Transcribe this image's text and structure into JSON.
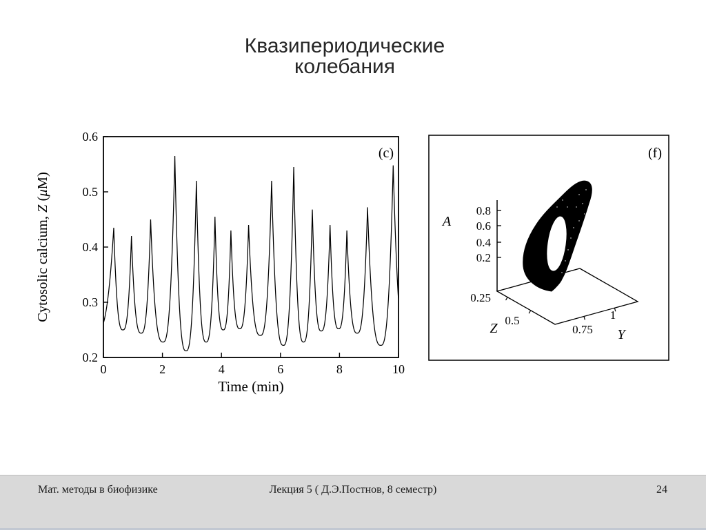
{
  "title": {
    "line1": "Квазипериодические",
    "line2": "колебания"
  },
  "footer": {
    "left": "Мат. методы в биофизике",
    "center": "Лекция 5 ( Д.Э.Постнов, 8 семестр)",
    "page": "24"
  },
  "colors": {
    "ink": "#000000",
    "footer_bg": "#d9d9d9",
    "footer_top_line": "#bdbdbd",
    "footer_bottom_edge": "#c2c8d2"
  },
  "chart_data": [
    {
      "id": "c",
      "type": "line",
      "panel_label": "(c)",
      "title": "",
      "xlabel": "Time (min)",
      "ylabel": "Cytosolic calcium, Z (μM)",
      "xlim": [
        0,
        10
      ],
      "ylim": [
        0.2,
        0.6
      ],
      "xticks": [
        0,
        2,
        4,
        6,
        8,
        10
      ],
      "yticks": [
        0.2,
        0.3,
        0.4,
        0.5,
        0.6
      ],
      "grid": false,
      "description": "Quasiperiodic calcium spike train: sharp spikes of slowly modulated amplitude over rounded valleys",
      "peaks_t_z": [
        [
          0.35,
          0.435
        ],
        [
          0.95,
          0.42
        ],
        [
          1.6,
          0.45
        ],
        [
          2.42,
          0.565
        ],
        [
          3.15,
          0.52
        ],
        [
          3.78,
          0.455
        ],
        [
          4.32,
          0.43
        ],
        [
          4.92,
          0.44
        ],
        [
          5.7,
          0.52
        ],
        [
          6.45,
          0.545
        ],
        [
          7.08,
          0.468
        ],
        [
          7.68,
          0.44
        ],
        [
          8.25,
          0.43
        ],
        [
          8.95,
          0.472
        ],
        [
          9.82,
          0.548
        ]
      ],
      "valleys_t_z": [
        [
          -0.25,
          0.246
        ],
        [
          0.66,
          0.25
        ],
        [
          1.28,
          0.244
        ],
        [
          2.02,
          0.228
        ],
        [
          2.8,
          0.212
        ],
        [
          3.48,
          0.228
        ],
        [
          4.06,
          0.25
        ],
        [
          4.62,
          0.252
        ],
        [
          5.32,
          0.24
        ],
        [
          6.1,
          0.222
        ],
        [
          6.78,
          0.228
        ],
        [
          7.38,
          0.248
        ],
        [
          7.97,
          0.252
        ],
        [
          8.6,
          0.244
        ],
        [
          9.4,
          0.222
        ],
        [
          10.3,
          0.214
        ]
      ]
    },
    {
      "id": "f",
      "type": "scatter",
      "panel_label": "(f)",
      "projection": "3d",
      "description": "Dense torus attractor (quasiperiodic trajectory ring) above a tilted base plane",
      "axes": {
        "vertical": {
          "label": "A",
          "ticks": [
            0.2,
            0.4,
            0.6,
            0.8
          ]
        },
        "floor_left": {
          "label": "Z",
          "ticks": [
            0.25,
            0.5
          ]
        },
        "floor_right": {
          "label": "Y",
          "ticks": [
            0.75,
            1
          ]
        }
      }
    }
  ]
}
